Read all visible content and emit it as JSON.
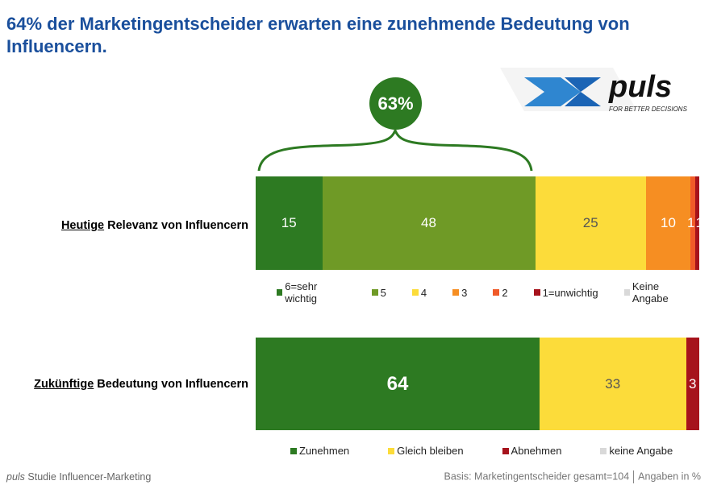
{
  "title": "64% der Marketingentscheider erwarten eine zunehmende Bedeutung von Influencern.",
  "logo": {
    "brand": "puls",
    "tagline": "FOR BETTER DECISIONS"
  },
  "highlight": {
    "label": "63%",
    "color": "#2d7a22"
  },
  "chart_data": [
    {
      "type": "bar",
      "orientation": "horizontal-stacked",
      "category_label_underlined": "Heutige",
      "category_label_rest": " Relevanz von Influencern",
      "categories": [
        "Heutige Relevanz von Influencern"
      ],
      "series": [
        {
          "name": "6=sehr wichtig",
          "values": [
            15
          ],
          "color": "#2d7a22",
          "label": "15"
        },
        {
          "name": "5",
          "values": [
            48
          ],
          "color": "#6f9a26",
          "label": "48"
        },
        {
          "name": "4",
          "values": [
            25
          ],
          "color": "#fcdc3a",
          "label": "25"
        },
        {
          "name": "3",
          "values": [
            10
          ],
          "color": "#f68e22",
          "label": "10"
        },
        {
          "name": "2",
          "values": [
            1
          ],
          "color": "#f05a28",
          "label": "1"
        },
        {
          "name": "1=unwichtig",
          "values": [
            1
          ],
          "color": "#a6131c",
          "label": "1"
        },
        {
          "name": "Keine Angabe",
          "values": [
            0
          ],
          "color": "#d9d9d9",
          "label": ""
        }
      ],
      "unit": "%"
    },
    {
      "type": "bar",
      "orientation": "horizontal-stacked",
      "category_label_underlined": "Zukünftige",
      "category_label_rest": " Bedeutung von Influencern",
      "categories": [
        "Zukünftige Bedeutung von Influencern"
      ],
      "series": [
        {
          "name": "Zunehmen",
          "values": [
            64
          ],
          "color": "#2d7a22",
          "label": "64"
        },
        {
          "name": "Gleich bleiben",
          "values": [
            33
          ],
          "color": "#fcdc3a",
          "label": "33"
        },
        {
          "name": "Abnehmen",
          "values": [
            3
          ],
          "color": "#a6131c",
          "label": "3"
        },
        {
          "name": "keine Angabe",
          "values": [
            0
          ],
          "color": "#d9d9d9",
          "label": ""
        }
      ],
      "unit": "%"
    }
  ],
  "footer": {
    "left_brand": "puls",
    "left_text": " Studie Influencer-Marketing",
    "basis": "Basis: Marketingentscheider gesamt=104",
    "unit_note": "Angaben in %"
  }
}
